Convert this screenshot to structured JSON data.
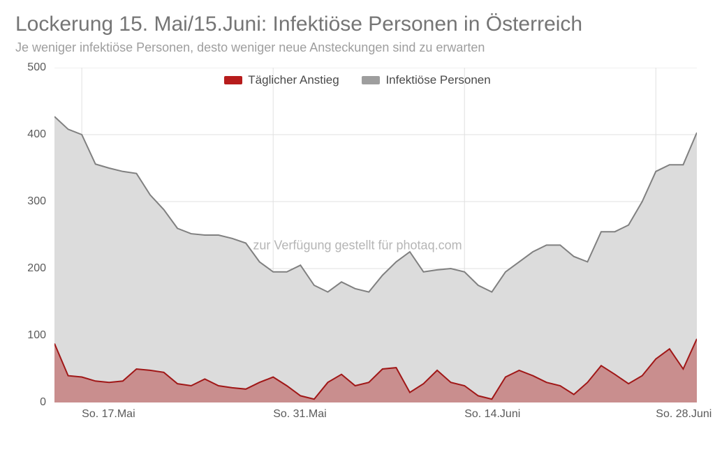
{
  "title": "Lockerung 15. Mai/15.Juni: Infektiöse Personen in Österreich",
  "subtitle": "Je weniger infektiöse Personen, desto weniger neue Ansteckungen sind zu erwarten",
  "watermark": "zur Verfügung gestellt für photaq.com",
  "legend": {
    "series1": {
      "label": "Täglicher Anstieg",
      "swatch_color": "#b71c1c"
    },
    "series2": {
      "label": "Infektiöse Personen",
      "swatch_color": "#9e9e9e"
    }
  },
  "chart": {
    "type": "area",
    "background_color": "#ffffff",
    "grid_color": "#e0e0e0",
    "axis_line_color": "#bdbdbd",
    "ylim": [
      0,
      500
    ],
    "yticks": [
      0,
      100,
      200,
      300,
      400,
      500
    ],
    "x_tick_indices": [
      2,
      16,
      30,
      44
    ],
    "x_tick_labels": [
      "So. 17.Mai",
      "So. 31.Mai",
      "So. 14.Juni",
      "So. 28.Juni"
    ],
    "n_points": 48,
    "series_infectious": {
      "fill_color": "#dcdcdc",
      "fill_opacity": 1.0,
      "line_color": "#808080",
      "line_width": 2,
      "values": [
        427,
        408,
        400,
        356,
        350,
        345,
        342,
        310,
        288,
        260,
        252,
        250,
        250,
        245,
        238,
        210,
        195,
        195,
        205,
        175,
        165,
        180,
        170,
        165,
        190,
        210,
        225,
        195,
        198,
        200,
        195,
        175,
        165,
        195,
        210,
        225,
        235,
        235,
        218,
        210,
        255,
        255,
        265,
        300,
        345,
        355,
        355,
        403
      ]
    },
    "series_daily": {
      "fill_color": "#c68585",
      "fill_opacity": 0.9,
      "line_color": "#a01717",
      "line_width": 2,
      "values": [
        88,
        40,
        38,
        32,
        30,
        32,
        50,
        48,
        45,
        28,
        25,
        35,
        25,
        22,
        20,
        30,
        38,
        25,
        10,
        5,
        30,
        42,
        25,
        30,
        50,
        52,
        15,
        28,
        48,
        30,
        25,
        10,
        5,
        38,
        48,
        40,
        30,
        25,
        12,
        30,
        55,
        42,
        28,
        40,
        65,
        80,
        50,
        95
      ]
    },
    "label_fontsize": 16,
    "label_color": "#5a5a5a"
  }
}
